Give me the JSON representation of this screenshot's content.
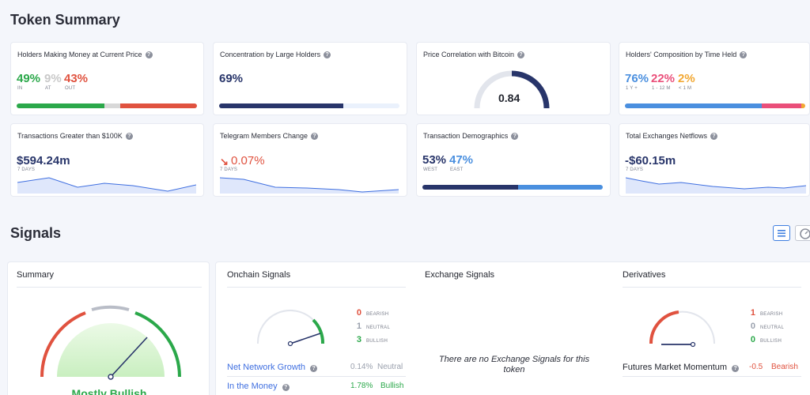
{
  "token_summary": {
    "title": "Token Summary",
    "cards": {
      "holders_money": {
        "title": "Holders Making Money at Current Price",
        "in_value": "49%",
        "in_label": "IN",
        "at_value": "9%",
        "at_label": "AT",
        "out_value": "43%",
        "out_label": "OUT",
        "bar_segments": [
          0.49,
          0.09,
          0.43
        ]
      },
      "concentration": {
        "title": "Concentration by Large Holders",
        "value": "69%",
        "bar_fraction": 0.69
      },
      "btc_correlation": {
        "title": "Price Correlation with Bitcoin",
        "value": "0.84",
        "gauge_fraction": 0.84
      },
      "composition": {
        "title": "Holders' Composition by Time Held",
        "a_value": "76%",
        "a_label": "1 Y +",
        "b_value": "22%",
        "b_label": "1 - 12 M",
        "c_value": "2%",
        "c_label": "< 1 M",
        "bar_segments": [
          0.76,
          0.22,
          0.02
        ]
      },
      "transactions_100k": {
        "title": "Transactions Greater than $100K",
        "value": "$594.24m",
        "period": "7 DAYS"
      },
      "telegram": {
        "title": "Telegram Members Change",
        "value": "0.07%",
        "period": "7 DAYS"
      },
      "demographics": {
        "title": "Transaction Demographics",
        "west_value": "53%",
        "west_label": "WEST",
        "east_value": "47%",
        "east_label": "EAST",
        "bar_segments": [
          0.53,
          0.47
        ]
      },
      "netflows": {
        "title": "Total Exchanges Netflows",
        "value": "-$60.15m",
        "period": "7 DAYS"
      }
    }
  },
  "signals": {
    "title": "Signals",
    "summary": {
      "title": "Summary",
      "verdict": "Mostly Bullish"
    },
    "onchain": {
      "title": "Onchain Signals",
      "bearish_count": "0",
      "bearish_label": "BEARISH",
      "neutral_count": "1",
      "neutral_label": "NEUTRAL",
      "bullish_count": "3",
      "bullish_label": "BULLISH",
      "rows": [
        {
          "name": "Net Network Growth",
          "value": "0.14%",
          "status": "Neutral"
        },
        {
          "name": "In the Money",
          "value": "1.78%",
          "status": "Bullish"
        }
      ]
    },
    "exchange": {
      "title": "Exchange Signals",
      "empty_message": "There are no Exchange Signals for this token"
    },
    "derivatives": {
      "title": "Derivatives",
      "bearish_count": "1",
      "bearish_label": "BEARISH",
      "neutral_count": "0",
      "neutral_label": "NEUTRAL",
      "bullish_count": "0",
      "bullish_label": "BULLISH",
      "rows": [
        {
          "name": "Futures Market Momentum",
          "value": "-0.5",
          "status": "Bearish"
        }
      ]
    }
  },
  "colors": {
    "green": "#2ba84a",
    "red": "#e0523f",
    "grey": "#d8d8d8",
    "navy": "#28356a",
    "blue": "#4a8fdf",
    "pink": "#ea4f7a",
    "orange": "#f2a833",
    "accent": "#3f7fe0"
  }
}
